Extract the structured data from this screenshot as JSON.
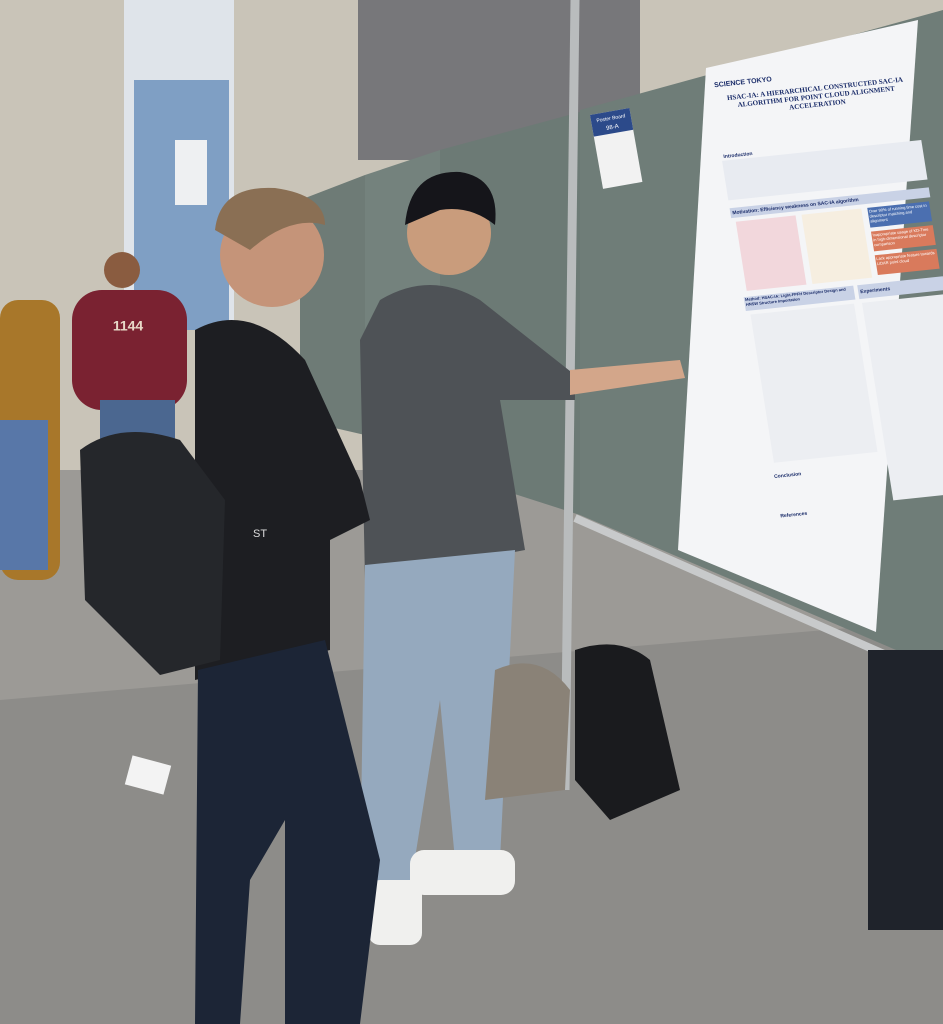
{
  "sign": {
    "title": "Poster Board",
    "number": "98-A"
  },
  "poster": {
    "institution": "SCIENCE TOKYO",
    "title": "HSAC-IA: A HIERARCHICAL CONSTRUCTED SAC-IA ALGORITHM FOR POINT CLOUD ALIGNMENT ACCELERATION",
    "sections": [
      "Introduction",
      "Motivation: Efficiency weakness on SAC-IA algorithm",
      "Method: HSAC-IA: Light-FPFH Descriptor Design and HNSW Structure Importation",
      "Experiments",
      "Conclusion",
      "References"
    ],
    "callouts": [
      "Over 90% of running time cost in descriptor matching and alignment",
      "Inappropriate usage of KD-Tree in high-dimensional descriptor comparison",
      "Lack appropriate feature towards LiDAR point cloud"
    ]
  },
  "shirt_text": "1144",
  "jacket_text": "ST"
}
